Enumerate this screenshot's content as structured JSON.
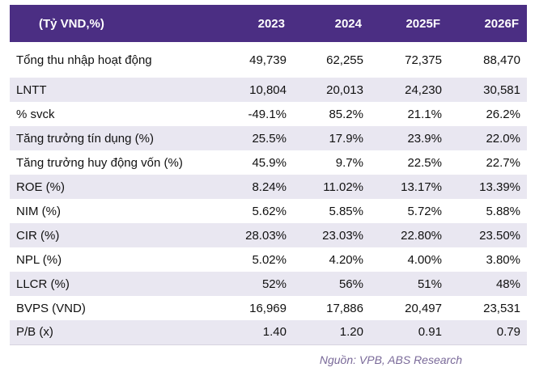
{
  "table": {
    "header": {
      "label": "(Tỷ VND,%)",
      "years": [
        "2023",
        "2024",
        "2025F",
        "2026F"
      ]
    },
    "rows": [
      {
        "label": "Tổng thu nhập hoạt động",
        "values": [
          "49,739",
          "62,255",
          "72,375",
          "88,470"
        ]
      },
      {
        "label": "LNTT",
        "values": [
          "10,804",
          "20,013",
          "24,230",
          "30,581"
        ]
      },
      {
        "label": "% svck",
        "values": [
          "-49.1%",
          "85.2%",
          "21.1%",
          "26.2%"
        ]
      },
      {
        "label": "Tăng trưởng tín dụng (%)",
        "values": [
          "25.5%",
          "17.9%",
          "23.9%",
          "22.0%"
        ]
      },
      {
        "label": "Tăng trưởng huy động vốn (%)",
        "values": [
          "45.9%",
          "9.7%",
          "22.5%",
          "22.7%"
        ]
      },
      {
        "label": "ROE (%)",
        "values": [
          "8.24%",
          "11.02%",
          "13.17%",
          "13.39%"
        ]
      },
      {
        "label": "NIM (%)",
        "values": [
          "5.62%",
          "5.85%",
          "5.72%",
          "5.88%"
        ]
      },
      {
        "label": "CIR (%)",
        "values": [
          "28.03%",
          "23.03%",
          "22.80%",
          "23.50%"
        ]
      },
      {
        "label": "NPL (%)",
        "values": [
          "5.02%",
          "4.20%",
          "4.00%",
          "3.80%"
        ]
      },
      {
        "label": "LLCR (%)",
        "values": [
          "52%",
          "56%",
          "51%",
          "48%"
        ]
      },
      {
        "label": "BVPS (VND)",
        "values": [
          "16,969",
          "17,886",
          "20,497",
          "23,531"
        ]
      },
      {
        "label": "P/B (x)",
        "values": [
          "1.40",
          "1.20",
          "0.91",
          "0.79"
        ]
      }
    ]
  },
  "source": "Nguồn: VPB, ABS Research",
  "colors": {
    "header_bg": "#4b2e83",
    "stripe_bg": "#e9e7f1",
    "source_text": "#7a6a99"
  }
}
